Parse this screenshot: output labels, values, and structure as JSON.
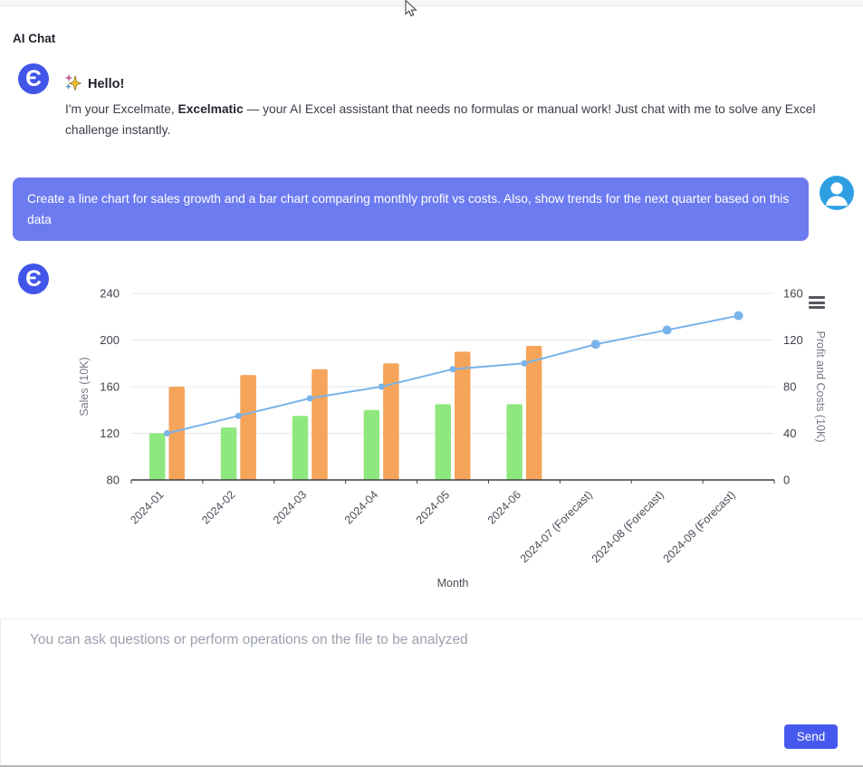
{
  "header": {
    "title": "AI Chat"
  },
  "bot": {
    "avatar_glyph": "Є",
    "greeting_title": "Hello!",
    "intro_pre": "I'm your Excelmate, ",
    "intro_bold": "Excelmatic",
    "intro_post": " — your AI Excel assistant that needs no formulas or manual work! Just chat with me to solve any Excel challenge instantly."
  },
  "user_message": {
    "text": "Create a line chart for sales growth and a bar chart comparing monthly profit vs costs. Also, show trends for the next quarter based on this data"
  },
  "composer": {
    "placeholder": "You can ask questions or perform operations on the file to be analyzed",
    "send_label": "Send"
  },
  "icons": {
    "bot_avatar": "excelmatic-logo",
    "user_avatar": "person-silhouette",
    "sparkles": "sparkles",
    "chart_menu": "hamburger-menu",
    "cursor": "arrow-pointer"
  },
  "colors": {
    "bot_avatar_bg": "#4155E8",
    "user_bubble_bg": "#6D7BF0",
    "user_avatar_bg": "#2E9FE3",
    "send_button_bg": "#4659EE",
    "line_series": "#79B3EA",
    "profit_bar": "#8FE87F",
    "costs_bar": "#F5A45A"
  },
  "chart_data": {
    "type": "bar",
    "categories": [
      "2024-01",
      "2024-02",
      "2024-03",
      "2024-04",
      "2024-05",
      "2024-06",
      "2024-07 (Forecast)",
      "2024-08 (Forecast)",
      "2024-09 (Forecast)"
    ],
    "series": [
      {
        "name": "Sales",
        "type": "line",
        "yaxis": "left",
        "color": "#79B3EA",
        "values": [
          120,
          135,
          150,
          160,
          175,
          180,
          196.3,
          208.6,
          220.9
        ]
      },
      {
        "name": "Profit",
        "type": "bar",
        "yaxis": "right",
        "color": "#8FE87F",
        "values": [
          40,
          45,
          55,
          60,
          65,
          65,
          null,
          null,
          null
        ]
      },
      {
        "name": "Costs",
        "type": "bar",
        "yaxis": "right",
        "color": "#F5A45A",
        "values": [
          80,
          90,
          95,
          100,
          110,
          115,
          null,
          null,
          null
        ]
      }
    ],
    "title": "",
    "xlabel": "Month",
    "ylabel_left": "Sales (10K)",
    "ylabel_right": "Profit and Costs (10K)",
    "ylim_left": [
      80,
      240
    ],
    "ylim_right": [
      0,
      160
    ],
    "yticks_left": [
      80,
      120,
      160,
      200,
      240
    ],
    "yticks_right": [
      0,
      40,
      80,
      120,
      160
    ],
    "grid": true,
    "legend": "none"
  }
}
